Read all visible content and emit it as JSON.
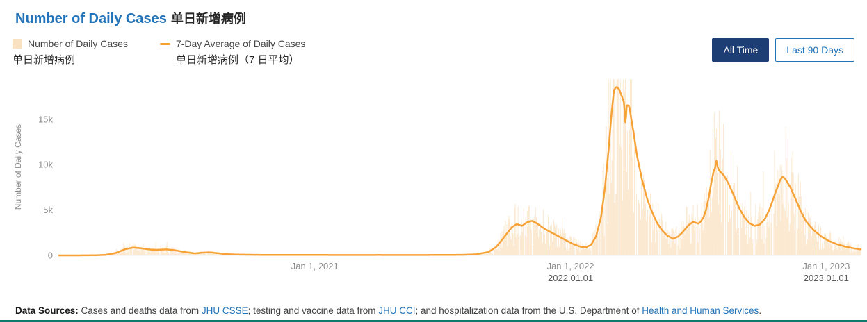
{
  "page": {
    "title_en": "Number of Daily Cases",
    "title_zh": "单日新增病例"
  },
  "legend": {
    "items": [
      {
        "label_en": "Number of Daily Cases",
        "label_zh": "单日新增病例",
        "swatch": "area"
      },
      {
        "label_en": "7-Day Average of Daily Cases",
        "label_zh": "单日新增病例（7 日平均）",
        "swatch": "line"
      }
    ]
  },
  "controls": {
    "all_time_label": "All Time",
    "last_90_label": "Last 90 Days",
    "active": "All Time"
  },
  "footer": {
    "prefix": "Data Sources:",
    "seg1": " Cases and deaths data from ",
    "link1": "JHU CSSE",
    "seg2": "; testing and vaccine data from ",
    "link2": "JHU CCI",
    "seg3": "; and hospitalization data from the U.S. Department of ",
    "link3": "Health and Human Services",
    "seg4": "."
  },
  "colors": {
    "title_blue": "#2273B9",
    "text_dark": "#262626",
    "text_gray": "#595959",
    "axis_gray": "#8C8C8C",
    "line_orange": "#F7A237",
    "bar_fill": "#FBE9D2",
    "bar_swatch": "#F9E2C2",
    "button_navy": "#1D3E74",
    "link_blue": "#2273B9",
    "divider_teal": "#0E7A6E"
  },
  "chart_data": {
    "type": "bar",
    "title": "Number of Daily Cases 单日新增病例",
    "xlabel": "",
    "ylabel": "Number of Daily Cases",
    "x_unit": "decimal_year",
    "x_range": [
      2020.0,
      2023.135
    ],
    "ylim": [
      0,
      19500
    ],
    "grid": false,
    "legend_position": "top-left",
    "y_ticks": [
      {
        "v": 0,
        "label": "0"
      },
      {
        "v": 5000,
        "label": "5k"
      },
      {
        "v": 10000,
        "label": "10k"
      },
      {
        "v": 15000,
        "label": "15k"
      }
    ],
    "x_ticks": [
      {
        "v": 2021.0,
        "label": "Jan 1, 2021"
      },
      {
        "v": 2022.0,
        "label": "Jan 1, 2022",
        "annotation": "2022.01.01"
      },
      {
        "v": 2023.0,
        "label": "Jan 1, 2023",
        "annotation": "2023.01.01"
      }
    ],
    "bar_noise": {
      "seed": 7,
      "min": 0.3,
      "max": 1.75,
      "spike_prob": 0.05,
      "spike_mult": 1.5,
      "zero_prob": 0.06
    },
    "series": [
      {
        "name": "Number of Daily Cases 单日新增病例",
        "type": "bar",
        "color": "#FBE9D2",
        "derived_from": "7-day average series with random daily variation"
      },
      {
        "name": "7-Day Average of Daily Cases 单日新增病例（7 日平均）",
        "type": "line",
        "color": "#F7A237",
        "points": [
          [
            2020.0,
            0
          ],
          [
            2020.08,
            3
          ],
          [
            2020.14,
            15
          ],
          [
            2020.18,
            60
          ],
          [
            2020.22,
            250
          ],
          [
            2020.26,
            700
          ],
          [
            2020.29,
            860
          ],
          [
            2020.32,
            790
          ],
          [
            2020.35,
            660
          ],
          [
            2020.38,
            610
          ],
          [
            2020.42,
            660
          ],
          [
            2020.45,
            580
          ],
          [
            2020.49,
            380
          ],
          [
            2020.53,
            220
          ],
          [
            2020.56,
            300
          ],
          [
            2020.59,
            340
          ],
          [
            2020.62,
            240
          ],
          [
            2020.66,
            130
          ],
          [
            2020.71,
            85
          ],
          [
            2020.8,
            60
          ],
          [
            2020.9,
            50
          ],
          [
            2021.0,
            55
          ],
          [
            2021.1,
            45
          ],
          [
            2021.25,
            50
          ],
          [
            2021.4,
            45
          ],
          [
            2021.5,
            55
          ],
          [
            2021.58,
            70
          ],
          [
            2021.63,
            120
          ],
          [
            2021.68,
            380
          ],
          [
            2021.71,
            950
          ],
          [
            2021.74,
            2000
          ],
          [
            2021.77,
            3100
          ],
          [
            2021.79,
            3450
          ],
          [
            2021.81,
            3250
          ],
          [
            2021.83,
            3650
          ],
          [
            2021.85,
            3800
          ],
          [
            2021.87,
            3500
          ],
          [
            2021.9,
            2900
          ],
          [
            2021.94,
            2300
          ],
          [
            2021.98,
            1700
          ],
          [
            2022.01,
            1250
          ],
          [
            2022.04,
            950
          ],
          [
            2022.06,
            900
          ],
          [
            2022.08,
            1150
          ],
          [
            2022.1,
            2100
          ],
          [
            2022.12,
            4300
          ],
          [
            2022.135,
            7500
          ],
          [
            2022.15,
            12000
          ],
          [
            2022.16,
            15500
          ],
          [
            2022.17,
            18200
          ],
          [
            2022.18,
            18600
          ],
          [
            2022.19,
            18300
          ],
          [
            2022.2,
            17600
          ],
          [
            2022.21,
            16800
          ],
          [
            2022.215,
            14300
          ],
          [
            2022.22,
            16600
          ],
          [
            2022.23,
            16400
          ],
          [
            2022.245,
            13800
          ],
          [
            2022.26,
            11000
          ],
          [
            2022.28,
            8300
          ],
          [
            2022.3,
            6200
          ],
          [
            2022.32,
            4700
          ],
          [
            2022.34,
            3500
          ],
          [
            2022.36,
            2700
          ],
          [
            2022.38,
            2150
          ],
          [
            2022.4,
            1850
          ],
          [
            2022.42,
            2050
          ],
          [
            2022.44,
            2600
          ],
          [
            2022.46,
            3300
          ],
          [
            2022.48,
            3700
          ],
          [
            2022.5,
            3500
          ],
          [
            2022.51,
            3750
          ],
          [
            2022.52,
            4200
          ],
          [
            2022.53,
            5000
          ],
          [
            2022.54,
            6300
          ],
          [
            2022.55,
            7900
          ],
          [
            2022.56,
            9300
          ],
          [
            2022.565,
            9600
          ],
          [
            2022.57,
            10500
          ],
          [
            2022.575,
            9800
          ],
          [
            2022.58,
            9400
          ],
          [
            2022.6,
            8800
          ],
          [
            2022.62,
            7800
          ],
          [
            2022.64,
            6500
          ],
          [
            2022.66,
            5200
          ],
          [
            2022.68,
            4200
          ],
          [
            2022.7,
            3550
          ],
          [
            2022.72,
            3250
          ],
          [
            2022.74,
            3400
          ],
          [
            2022.76,
            4000
          ],
          [
            2022.78,
            5200
          ],
          [
            2022.8,
            6800
          ],
          [
            2022.82,
            8300
          ],
          [
            2022.83,
            8700
          ],
          [
            2022.84,
            8400
          ],
          [
            2022.86,
            7500
          ],
          [
            2022.88,
            6200
          ],
          [
            2022.9,
            4900
          ],
          [
            2022.92,
            3800
          ],
          [
            2022.95,
            2800
          ],
          [
            2022.98,
            2100
          ],
          [
            2023.01,
            1600
          ],
          [
            2023.04,
            1250
          ],
          [
            2023.07,
            1000
          ],
          [
            2023.1,
            820
          ],
          [
            2023.13,
            680
          ]
        ]
      }
    ]
  }
}
